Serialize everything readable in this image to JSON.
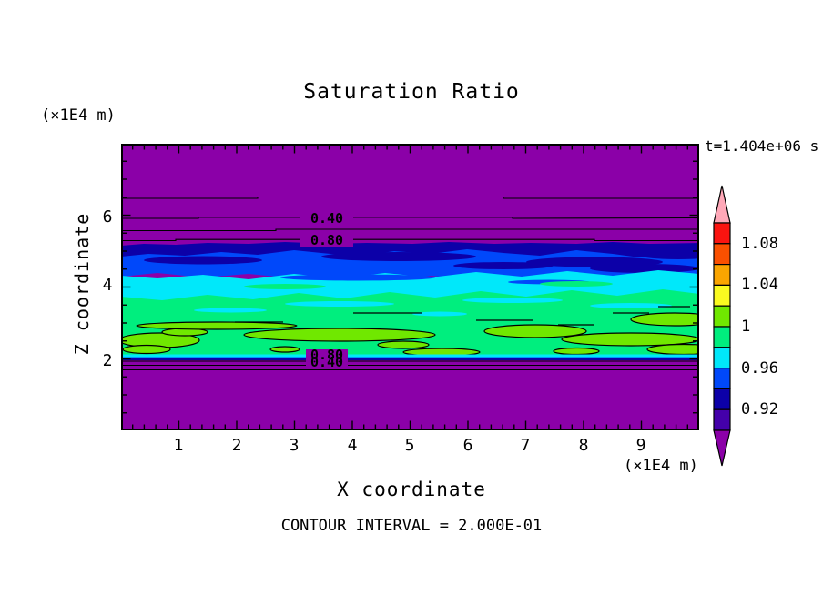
{
  "chart": {
    "title": "Saturation Ratio",
    "time_label": "t=1.404e+06 s",
    "contour_note": "CONTOUR INTERVAL = 2.000E-01"
  },
  "axes": {
    "x": {
      "label": "X coordinate",
      "unit": "(×1E4 m)",
      "ticks": [
        "1",
        "2",
        "3",
        "4",
        "5",
        "6",
        "7",
        "8",
        "9"
      ],
      "range": [
        0,
        10
      ]
    },
    "y": {
      "label": "Z coordinate",
      "unit": "(×1E4 m)",
      "ticks": [
        "6",
        "4",
        "2"
      ],
      "range": [
        0,
        8
      ]
    }
  },
  "plot_labels": {
    "upper": [
      "0.40",
      "0.80"
    ],
    "lower": [
      "0.80",
      "0.40"
    ]
  },
  "colorbar": {
    "tick_labels": [
      "1.08",
      "1.04",
      "1",
      "0.96",
      "0.92"
    ],
    "tick_values": [
      1.08,
      1.04,
      1.0,
      0.96,
      0.92
    ],
    "level_min": 0.9,
    "level_max": 1.1,
    "level_step": 0.02,
    "colors_top_to_bottom": [
      "#FFA8B8",
      "#FA1410",
      "#FA5000",
      "#FAA500",
      "#FAFA20",
      "#70E800",
      "#00EE7E",
      "#00E8FA",
      "#0048FA",
      "#0C00A8",
      "#4400AA",
      "#8B00A8"
    ]
  },
  "chart_data": {
    "type": "heatmap",
    "subtype": "filled-contour-plot",
    "title": "Saturation Ratio",
    "xlabel": "X coordinate (×1E4 m)",
    "ylabel": "Z coordinate (×1E4 m)",
    "xlim": [
      0,
      10
    ],
    "ylim": [
      0,
      8
    ],
    "time": "t=1.404e+06 s",
    "contour_interval": "2.000E-01",
    "colorbar_range": [
      0.9,
      1.1
    ],
    "colorbar_step": 0.02,
    "colorbar_labeled_ticks": [
      0.92,
      0.96,
      1.0,
      1.04,
      1.08
    ],
    "bands": [
      {
        "value_range": "< 0.90",
        "color": "#8B00A8",
        "z_extent": "z ≈ 5.3–8.0 (top) and z ≈ 0–2.0 (bottom)"
      },
      {
        "value_range": "0.90–0.94",
        "color": "#0C00A8",
        "z_extent": "z ≈ 5.05–5.35, wavy band with lenses in blue band"
      },
      {
        "value_range": "0.94–0.96",
        "color": "#0048FA",
        "z_extent": "z ≈ 4.7–5.2"
      },
      {
        "value_range": "0.96–0.98",
        "color": "#00E8FA",
        "z_extent": "z ≈ 3.9–4.8, thin strip also at z ≈ 2.05"
      },
      {
        "value_range": "0.98–1.00",
        "color": "#00EE7E",
        "z_extent": "z ≈ 2.1–4.0"
      },
      {
        "value_range": "1.00–1.02",
        "color": "#70E800",
        "z_extent": "elongated lenses z ≈ 2.1–3.3, outlined by 1.0 contour"
      }
    ],
    "contour_lines": [
      {
        "value": 0.2,
        "location": "z ≈ 6.5, upper purple zone, unlabeled"
      },
      {
        "value": 0.4,
        "location": "z ≈ 5.95, upper purple zone, labeled 0.40"
      },
      {
        "value": 0.6,
        "location": "z ≈ 5.6, upper purple zone, unlabeled"
      },
      {
        "value": 0.8,
        "location": "z ≈ 5.3, upper purple zone, labeled 0.80"
      },
      {
        "value": 1.0,
        "location": "closed outlines around chartreuse lenses z ≈ 2.1–3.3"
      },
      {
        "value": 0.8,
        "location": "z ≈ 2.0, lower purple zone, labeled 0.80"
      },
      {
        "value": 0.6,
        "location": "z ≈ 1.87, lower purple zone, unlabeled"
      },
      {
        "value": 0.4,
        "location": "z ≈ 1.72, lower purple zone, labeled 0.40"
      }
    ]
  }
}
